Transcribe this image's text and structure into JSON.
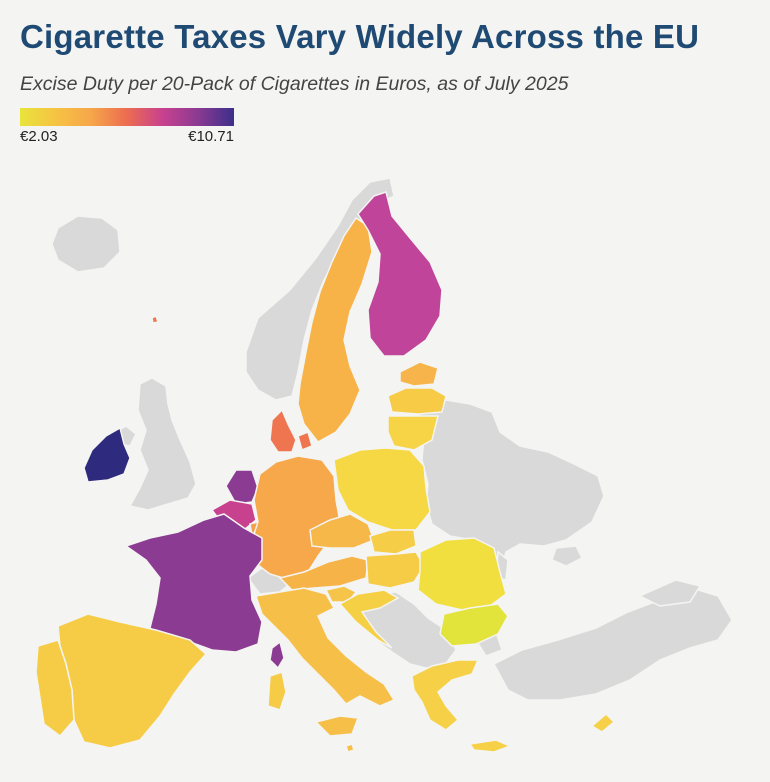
{
  "title": "Cigarette Taxes Vary Widely Across the EU",
  "subtitle": "Excise Duty per 20-Pack of Cigarettes in Euros, as of July 2025",
  "legend": {
    "min_label": "€2.03",
    "max_label": "€10.71",
    "min_value": 2.03,
    "max_value": 10.71,
    "gradient_colors": [
      "#e8e43c",
      "#f6c343",
      "#f6a64a",
      "#ec6c50",
      "#c8418f",
      "#8a3a92",
      "#3c2f8a"
    ]
  },
  "colors": {
    "background": "#f4f4f2",
    "non_eu": "#d9d9d9",
    "title": "#1f4a73"
  },
  "regions": [
    {
      "id": "ireland",
      "tier": "darkest",
      "color": "#2e2a7e"
    },
    {
      "id": "france",
      "tier": "high",
      "color": "#8b3b92"
    },
    {
      "id": "netherlands",
      "tier": "high",
      "color": "#8b3b92"
    },
    {
      "id": "belgium",
      "tier": "high-mid",
      "color": "#c8418f"
    },
    {
      "id": "luxembourg",
      "tier": "mid",
      "color": "#f2a04b"
    },
    {
      "id": "finland",
      "tier": "high-mid",
      "color": "#c0449a"
    },
    {
      "id": "denmark",
      "tier": "mid",
      "color": "#ee7550"
    },
    {
      "id": "sweden",
      "tier": "mid-low",
      "color": "#f7b248"
    },
    {
      "id": "estonia",
      "tier": "mid-low",
      "color": "#f6b44a"
    },
    {
      "id": "latvia",
      "tier": "low",
      "color": "#f7cb46"
    },
    {
      "id": "lithuania",
      "tier": "low",
      "color": "#f6d446"
    },
    {
      "id": "poland",
      "tier": "low",
      "color": "#f6d744"
    },
    {
      "id": "germany",
      "tier": "mid-low",
      "color": "#f6a84a"
    },
    {
      "id": "czechia",
      "tier": "mid-low",
      "color": "#f6b848"
    },
    {
      "id": "slovakia",
      "tier": "low",
      "color": "#f6cd46"
    },
    {
      "id": "austria",
      "tier": "mid-low",
      "color": "#f6b448"
    },
    {
      "id": "hungary",
      "tier": "low",
      "color": "#f6cc46"
    },
    {
      "id": "slovenia",
      "tier": "low",
      "color": "#f6c448"
    },
    {
      "id": "croatia",
      "tier": "low",
      "color": "#f6d044"
    },
    {
      "id": "romania",
      "tier": "low",
      "color": "#f1df3f"
    },
    {
      "id": "bulgaria",
      "tier": "lowest",
      "color": "#e3e43b"
    },
    {
      "id": "italy",
      "tier": "mid-low",
      "color": "#f6bf48"
    },
    {
      "id": "spain",
      "tier": "low",
      "color": "#f6cc46"
    },
    {
      "id": "portugal",
      "tier": "low",
      "color": "#f6cc46"
    },
    {
      "id": "greece",
      "tier": "low",
      "color": "#f6d046"
    },
    {
      "id": "cyprus",
      "tier": "low",
      "color": "#f6d046"
    },
    {
      "id": "malta",
      "tier": "mid-low",
      "color": "#f6bf48"
    },
    {
      "id": "corsica",
      "tier": "high",
      "color": "#8b3b92"
    },
    {
      "id": "sardinia",
      "tier": "low",
      "color": "#f6cc46"
    },
    {
      "id": "sicily",
      "tier": "mid-low",
      "color": "#f6bf48"
    }
  ]
}
